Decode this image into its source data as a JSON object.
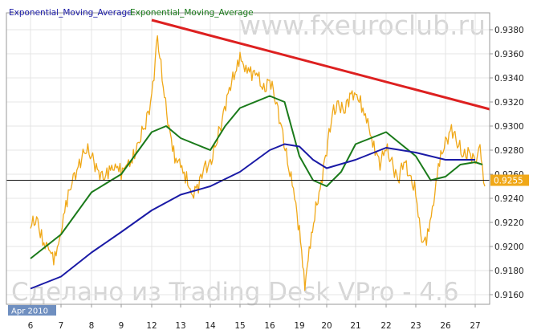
{
  "chart_data": {
    "type": "line",
    "title": "",
    "legend": [
      {
        "name": "Exponential_Moving_Average",
        "color": "#1a1aa6"
      },
      {
        "name": "Exponential_Moving_Average",
        "color": "#1a7a1a"
      }
    ],
    "watermark_top": "www.fxeuroclub.ru",
    "watermark_bottom": "Сделано из Trading Desk VPro - 4.6",
    "period_label": "Apr 2010",
    "ylim": [
      0.9152,
      0.9394
    ],
    "y_ticks": [
      "0.9380",
      "0.9360",
      "0.9340",
      "0.9320",
      "0.9300",
      "0.9280",
      "0.9260",
      "0.9240",
      "0.9220",
      "0.9200",
      "0.9180",
      "0.9160"
    ],
    "x_ticks": [
      "6",
      "7",
      "8",
      "9",
      "12",
      "13",
      "14",
      "15",
      "16",
      "19",
      "20",
      "21",
      "22",
      "23",
      "26",
      "27"
    ],
    "current_price": "0.9255",
    "horizontal_line": 0.9255,
    "trendline": {
      "color": "#dd2020",
      "start": {
        "x": "12",
        "y": 0.9388
      },
      "end": {
        "x": "27",
        "y": 0.9314
      }
    },
    "series": [
      {
        "style": "price",
        "color": "#f0a818",
        "points": [
          [
            "6",
            0.9215
          ],
          [
            "6",
            0.9225
          ],
          [
            "6",
            0.9205
          ],
          [
            "6",
            0.9195
          ],
          [
            "6",
            0.919
          ],
          [
            "7",
            0.9215
          ],
          [
            "7",
            0.9238
          ],
          [
            "7",
            0.9255
          ],
          [
            "7",
            0.927
          ],
          [
            "7",
            0.928
          ],
          [
            "8",
            0.9275
          ],
          [
            "8",
            0.9265
          ],
          [
            "8",
            0.9255
          ],
          [
            "8",
            0.9262
          ],
          [
            "8",
            0.927
          ],
          [
            "9",
            0.9262
          ],
          [
            "9",
            0.9265
          ],
          [
            "9",
            0.9275
          ],
          [
            "9",
            0.929
          ],
          [
            "9",
            0.93
          ],
          [
            "12",
            0.9325
          ],
          [
            "12",
            0.9375
          ],
          [
            "12",
            0.933
          ],
          [
            "12",
            0.93
          ],
          [
            "12",
            0.9275
          ],
          [
            "13",
            0.9265
          ],
          [
            "13",
            0.9255
          ],
          [
            "13",
            0.9245
          ],
          [
            "13",
            0.925
          ],
          [
            "13",
            0.9265
          ],
          [
            "14",
            0.927
          ],
          [
            "14",
            0.9285
          ],
          [
            "14",
            0.9305
          ],
          [
            "14",
            0.933
          ],
          [
            "14",
            0.934
          ],
          [
            "15",
            0.9355
          ],
          [
            "15",
            0.935
          ],
          [
            "15",
            0.9345
          ],
          [
            "15",
            0.934
          ],
          [
            "15",
            0.933
          ],
          [
            "16",
            0.934
          ],
          [
            "16",
            0.932
          ],
          [
            "16",
            0.93
          ],
          [
            "16",
            0.927
          ],
          [
            "16",
            0.9245
          ],
          [
            "19",
            0.9215
          ],
          [
            "19",
            0.917
          ],
          [
            "19",
            0.92
          ],
          [
            "19",
            0.923
          ],
          [
            "19",
            0.9255
          ],
          [
            "20",
            0.928
          ],
          [
            "20",
            0.931
          ],
          [
            "20",
            0.932
          ],
          [
            "20",
            0.931
          ],
          [
            "20",
            0.9325
          ],
          [
            "21",
            0.933
          ],
          [
            "21",
            0.9315
          ],
          [
            "21",
            0.93
          ],
          [
            "21",
            0.9285
          ],
          [
            "21",
            0.927
          ],
          [
            "22",
            0.928
          ],
          [
            "22",
            0.927
          ],
          [
            "22",
            0.9255
          ],
          [
            "22",
            0.927
          ],
          [
            "22",
            0.926
          ],
          [
            "23",
            0.9245
          ],
          [
            "23",
            0.92
          ],
          [
            "23",
            0.921
          ],
          [
            "23",
            0.924
          ],
          [
            "23",
            0.927
          ],
          [
            "26",
            0.9285
          ],
          [
            "26",
            0.93
          ],
          [
            "26",
            0.9285
          ],
          [
            "26",
            0.9275
          ],
          [
            "26",
            0.928
          ],
          [
            "27",
            0.9268
          ],
          [
            "27",
            0.928
          ],
          [
            "27",
            0.925
          ]
        ]
      },
      {
        "name": "Exponential_Moving_Average",
        "color": "#1a7a1a",
        "points": [
          [
            "6",
            0.919
          ],
          [
            "7",
            0.921
          ],
          [
            "8",
            0.9245
          ],
          [
            "9",
            0.926
          ],
          [
            "12",
            0.9295
          ],
          [
            "12",
            0.93
          ],
          [
            "13",
            0.929
          ],
          [
            "14",
            0.928
          ],
          [
            "14",
            0.93
          ],
          [
            "15",
            0.9315
          ],
          [
            "16",
            0.9325
          ],
          [
            "16",
            0.932
          ],
          [
            "19",
            0.9275
          ],
          [
            "19",
            0.9255
          ],
          [
            "20",
            0.925
          ],
          [
            "20",
            0.9262
          ],
          [
            "21",
            0.9285
          ],
          [
            "22",
            0.9295
          ],
          [
            "22",
            0.9285
          ],
          [
            "23",
            0.9275
          ],
          [
            "23",
            0.9255
          ],
          [
            "26",
            0.9258
          ],
          [
            "26",
            0.9268
          ],
          [
            "27",
            0.927
          ],
          [
            "27",
            0.9268
          ]
        ]
      },
      {
        "name": "Exponential_Moving_Average",
        "color": "#1a1aa6",
        "points": [
          [
            "6",
            0.9165
          ],
          [
            "7",
            0.9175
          ],
          [
            "8",
            0.9195
          ],
          [
            "9",
            0.9212
          ],
          [
            "12",
            0.923
          ],
          [
            "13",
            0.9243
          ],
          [
            "14",
            0.925
          ],
          [
            "15",
            0.9262
          ],
          [
            "16",
            0.928
          ],
          [
            "16",
            0.9285
          ],
          [
            "19",
            0.9283
          ],
          [
            "19",
            0.9272
          ],
          [
            "20",
            0.9265
          ],
          [
            "21",
            0.9272
          ],
          [
            "22",
            0.9282
          ],
          [
            "23",
            0.9278
          ],
          [
            "26",
            0.9272
          ],
          [
            "27",
            0.9272
          ]
        ]
      }
    ]
  }
}
